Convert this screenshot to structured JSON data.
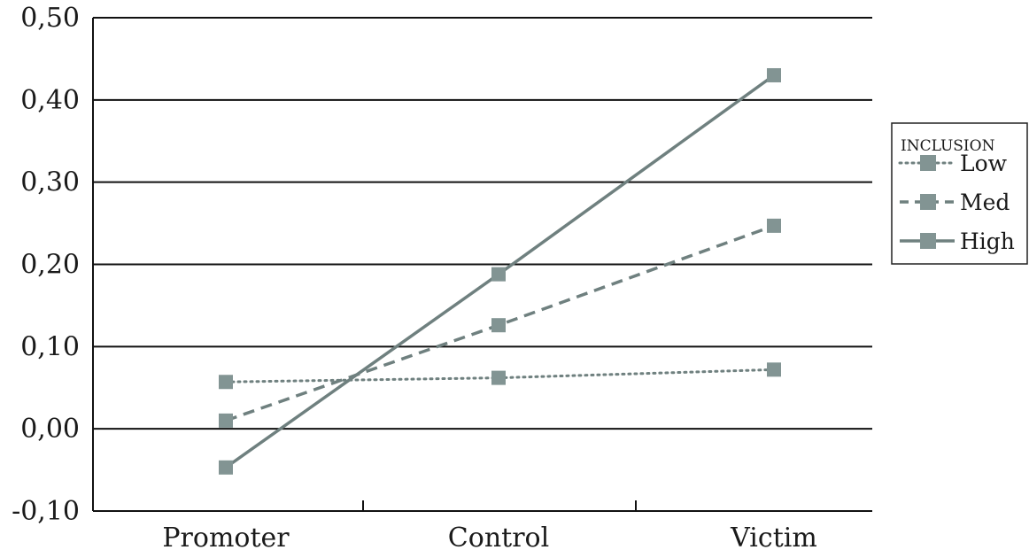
{
  "chart_data": {
    "type": "line",
    "categories": [
      "Promoter",
      "Control",
      "Victim"
    ],
    "series": [
      {
        "name": "Low",
        "values": [
          0.057,
          0.062,
          0.072
        ],
        "style": "dotted"
      },
      {
        "name": "Med",
        "values": [
          0.01,
          0.126,
          0.247
        ],
        "style": "dashed"
      },
      {
        "name": "High",
        "values": [
          -0.047,
          0.188,
          0.43
        ],
        "style": "solid"
      }
    ],
    "ylim": [
      -0.1,
      0.5
    ],
    "yticks": [
      -0.1,
      0.0,
      0.1,
      0.2,
      0.3,
      0.4,
      0.5
    ],
    "ytick_labels": [
      "-0,10",
      "0,00",
      "0,10",
      "0,20",
      "0,30",
      "0,40",
      "0,50"
    ],
    "title": "",
    "xlabel": "",
    "ylabel": "",
    "grid": true,
    "legend": {
      "title": "INCLUSION",
      "placement": "right"
    },
    "colors": {
      "line": "#6f807f",
      "marker": "#829493",
      "grid": "#111111"
    }
  }
}
